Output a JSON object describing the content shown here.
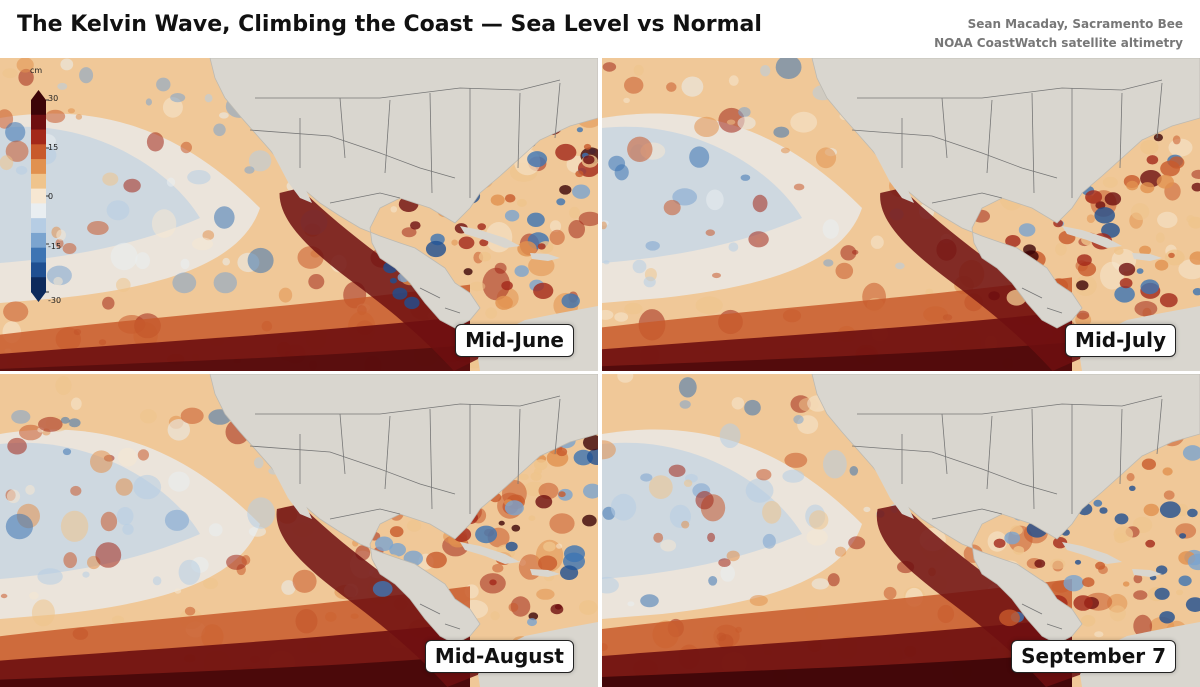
{
  "header": {
    "title": "The Kelvin Wave, Climbing the Coast — Sea Level vs Normal",
    "author": "Sean Macaday, Sacramento Bee",
    "source": "NOAA CoastWatch satellite altimetry"
  },
  "legend": {
    "unit": "cm",
    "ticks": [
      "30",
      "15",
      "0",
      "-15",
      "-30"
    ],
    "range": [
      -30,
      30
    ],
    "colors": [
      "#0d2a5c",
      "#1f4f91",
      "#3d74b3",
      "#7ba4cf",
      "#b6cde4",
      "#e9eef1",
      "#f6e7d2",
      "#efc48c",
      "#e1914f",
      "#c85a2c",
      "#a3281a",
      "#6e0f10",
      "#3d0508"
    ]
  },
  "map_colors": {
    "land": "#d9d6cf",
    "borders": "#767676",
    "ocean_base": "#f0c898"
  },
  "panels": [
    {
      "label": "Mid-June",
      "wave_strength": 0.55
    },
    {
      "label": "Mid-July",
      "wave_strength": 0.7
    },
    {
      "label": "Mid-August",
      "wave_strength": 0.85
    },
    {
      "label": "September 7",
      "wave_strength": 1.0
    }
  ]
}
